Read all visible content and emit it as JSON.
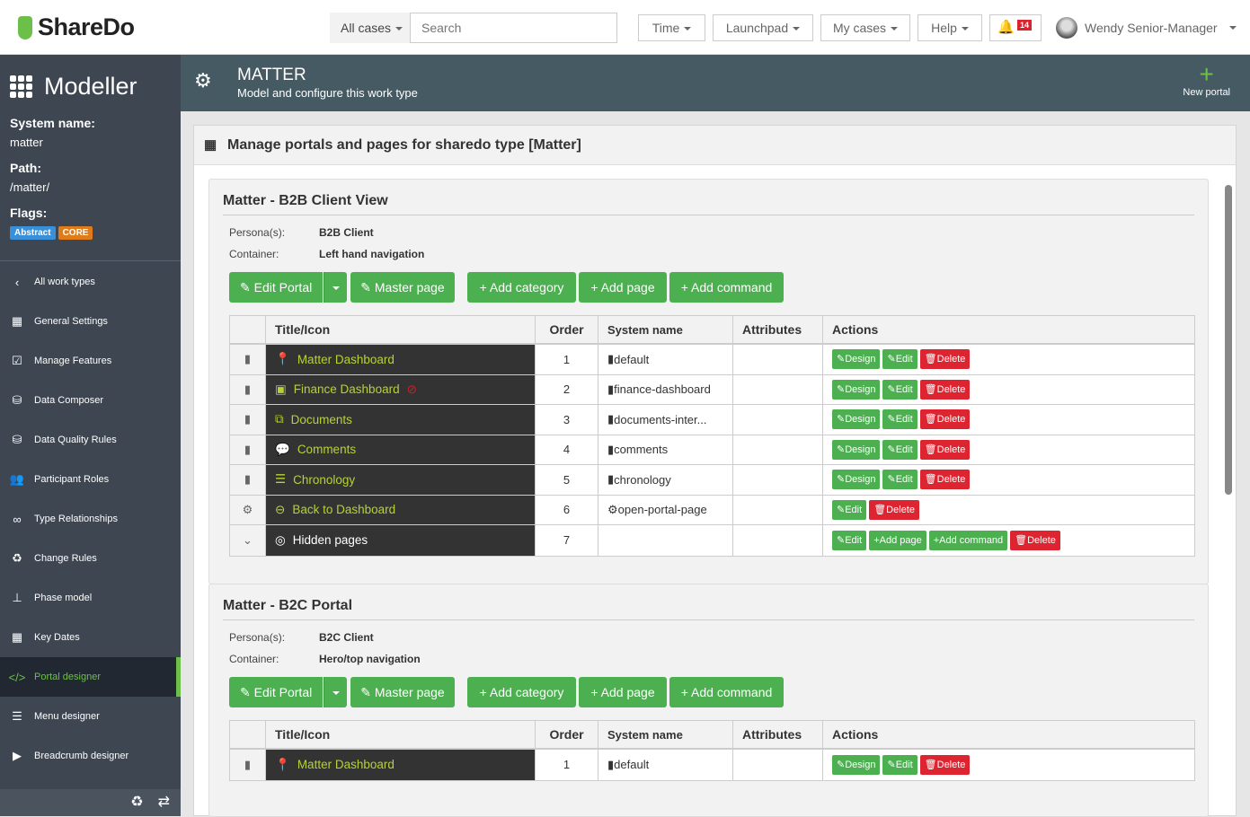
{
  "topbar": {
    "logo": "ShareDo",
    "scope": "All cases",
    "search_placeholder": "Search",
    "menus": [
      "Time",
      "Launchpad",
      "My cases",
      "Help"
    ],
    "notifications": "14",
    "user": "Wendy Senior-Manager"
  },
  "sidebar": {
    "title": "Modeller",
    "system_name_label": "System name:",
    "system_name": "matter",
    "path_label": "Path:",
    "path": "/matter/",
    "flags_label": "Flags:",
    "flags": [
      {
        "label": "Abstract",
        "color": "#3a8fd9"
      },
      {
        "label": "CORE",
        "color": "#e07b1a"
      }
    ],
    "items": [
      {
        "label": "All work types",
        "icon": "‹"
      },
      {
        "label": "General Settings",
        "icon": "▦"
      },
      {
        "label": "Manage Features",
        "icon": "☑"
      },
      {
        "label": "Data Composer",
        "icon": "⛁"
      },
      {
        "label": "Data Quality Rules",
        "icon": "⛁"
      },
      {
        "label": "Participant Roles",
        "icon": "👥"
      },
      {
        "label": "Type Relationships",
        "icon": "∞"
      },
      {
        "label": "Change Rules",
        "icon": "♻"
      },
      {
        "label": "Phase model",
        "icon": "⊥"
      },
      {
        "label": "Key Dates",
        "icon": "▦"
      },
      {
        "label": "Portal designer",
        "icon": "</>",
        "active": true
      },
      {
        "label": "Menu designer",
        "icon": "☰"
      },
      {
        "label": "Breadcrumb designer",
        "icon": "▶"
      }
    ]
  },
  "header": {
    "title": "MATTER",
    "subtitle": "Model and configure this work type",
    "new_portal": "New portal"
  },
  "panel": {
    "title": "Manage portals and pages for sharedo type [Matter]"
  },
  "labels": {
    "persona": "Persona(s):",
    "container": "Container:",
    "edit_portal": "Edit Portal",
    "master_page": "Master page",
    "add_category": "Add category",
    "add_page": "Add page",
    "add_command": "Add command",
    "design": "Design",
    "edit": "Edit",
    "delete": "Delete",
    "columns": [
      "Title/Icon",
      "Order",
      "System name",
      "Attributes",
      "Actions"
    ]
  },
  "portals": [
    {
      "name": "Matter - B2B Client View",
      "persona": "B2B Client",
      "container": "Left hand navigation",
      "rows": [
        {
          "type": "page",
          "icon": "📍",
          "title": "Matter Dashboard",
          "order": "1",
          "system_name": "default"
        },
        {
          "type": "page",
          "icon": "▣",
          "title": "Finance Dashboard",
          "hidden_flag": true,
          "order": "2",
          "system_name": "finance-dashboard"
        },
        {
          "type": "page",
          "icon": "⧉",
          "title": "Documents",
          "order": "3",
          "system_name": "documents-inter..."
        },
        {
          "type": "page",
          "icon": "💬",
          "title": "Comments",
          "order": "4",
          "system_name": "comments"
        },
        {
          "type": "page",
          "icon": "☰",
          "title": "Chronology",
          "order": "5",
          "system_name": "chronology"
        },
        {
          "type": "command",
          "icon": "⊖",
          "title": "Back to Dashboard",
          "order": "6",
          "system_name": "open-portal-page"
        },
        {
          "type": "category",
          "icon": "◎",
          "title": "Hidden pages",
          "order": "7",
          "system_name": ""
        }
      ]
    },
    {
      "name": "Matter - B2C Portal",
      "persona": "B2C Client",
      "container": "Hero/top navigation",
      "rows": [
        {
          "type": "page",
          "icon": "📍",
          "title": "Matter Dashboard",
          "order": "1",
          "system_name": "default"
        }
      ]
    }
  ],
  "colors": {
    "accent": "#4cb050",
    "danger": "#dc2530",
    "sidebar": "#3d4651",
    "header": "#465a63"
  }
}
